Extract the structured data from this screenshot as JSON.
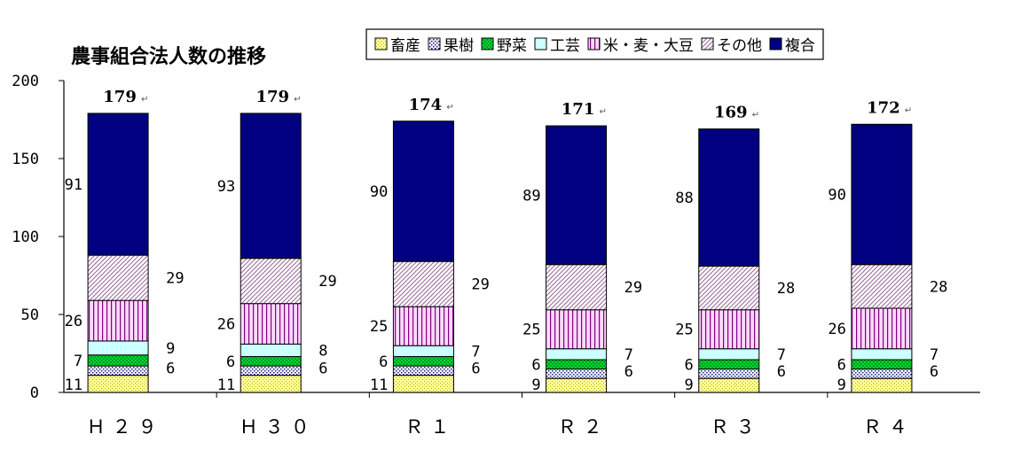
{
  "chart_data": {
    "type": "bar",
    "stacked": true,
    "title": "農事組合法人数の推移",
    "xlabel": "",
    "ylabel": "",
    "ylim": [
      0,
      200
    ],
    "yticks": [
      "0",
      "50",
      "100",
      "150",
      "200"
    ],
    "categories": [
      "Ｈ２９",
      "Ｈ３０",
      "Ｒ１",
      "Ｒ２",
      "Ｒ３",
      "Ｒ４"
    ],
    "series": [
      {
        "name": "畜産",
        "values": [
          11,
          11,
          11,
          9,
          9,
          9
        ],
        "color": "#ffff99",
        "pattern": "dots-yellow"
      },
      {
        "name": "果樹",
        "values": [
          6,
          6,
          6,
          6,
          6,
          6
        ],
        "color": "#ffffff",
        "pattern": "dots-blue"
      },
      {
        "name": "野菜",
        "values": [
          7,
          6,
          6,
          6,
          6,
          6
        ],
        "color": "#00cc33",
        "pattern": "checker-green"
      },
      {
        "name": "工芸",
        "values": [
          9,
          8,
          7,
          7,
          7,
          7
        ],
        "color": "#ccffff",
        "pattern": "solid"
      },
      {
        "name": "米・麦・大豆",
        "values": [
          26,
          26,
          25,
          25,
          25,
          26
        ],
        "color": "#ffccff",
        "pattern": "vertical-purple"
      },
      {
        "name": "その他",
        "values": [
          29,
          29,
          29,
          29,
          28,
          28
        ],
        "color": "#ffffff",
        "pattern": "diagonal-purple"
      },
      {
        "name": "複合",
        "values": [
          91,
          93,
          90,
          89,
          88,
          90
        ],
        "color": "#000080",
        "pattern": "solid"
      }
    ],
    "totals": [
      "179",
      "179",
      "174",
      "171",
      "169",
      "172"
    ],
    "total_mark": "↵",
    "legend_position": "top",
    "grid": false
  }
}
